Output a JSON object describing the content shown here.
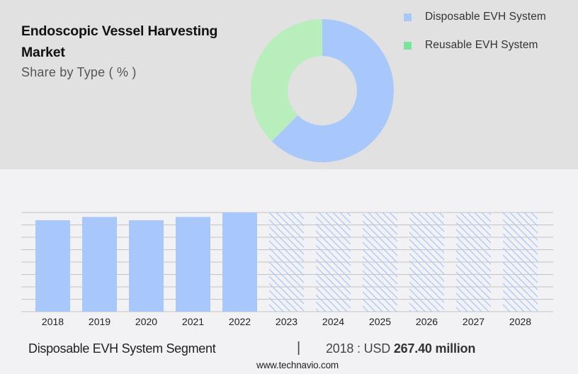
{
  "header": {
    "title": "Endoscopic Vessel Harvesting Market",
    "subtitle": "Share by Type ( % )"
  },
  "legend": [
    {
      "label": "Disposable EVH System",
      "color": "#a8c8fc"
    },
    {
      "label": "Reusable EVH System",
      "color": "#7ce49a"
    }
  ],
  "footer": {
    "segment": "Disposable EVH System Segment",
    "separator": "|",
    "value_prefix": "2018 : USD",
    "value_bold": "267.40 million",
    "url": "www.technavio.com"
  },
  "colors": {
    "top_band": "#e1e1e1",
    "background": "#f2f2f4",
    "disposable": "#a8c8fc",
    "reusable_donut": "#b8eebc",
    "reusable_legend": "#7ce49a",
    "gridline": "#c4c4c4"
  },
  "chart_data": [
    {
      "type": "pie",
      "variant": "donut",
      "title": "Endoscopic Vessel Harvesting Market",
      "subtitle": "Share by Type ( % )",
      "categories": [
        "Disposable EVH System",
        "Reusable EVH System"
      ],
      "values": [
        62.5,
        37.5
      ],
      "colors": [
        "#a8c8fc",
        "#b8eebc"
      ],
      "legend_position": "right",
      "start_angle": "12 o'clock, clockwise"
    },
    {
      "type": "bar",
      "title": "Disposable EVH System Segment",
      "categories": [
        "2018",
        "2019",
        "2020",
        "2021",
        "2022",
        "2023",
        "2024",
        "2025",
        "2026",
        "2027",
        "2028"
      ],
      "series": [
        {
          "name": "Disposable EVH System (historic)",
          "values": [
            267.4,
            277.0,
            267.4,
            277.0,
            290.0,
            null,
            null,
            null,
            null,
            null,
            null
          ],
          "style": "solid",
          "color": "#a8c8fc"
        },
        {
          "name": "Disposable EVH System (forecast)",
          "values": [
            null,
            null,
            null,
            null,
            null,
            290.0,
            290.0,
            290.0,
            290.0,
            290.0,
            290.0
          ],
          "style": "hatched",
          "color": "#a8c8fc"
        }
      ],
      "annotation": "2018 : USD 267.40 million",
      "xlabel": "",
      "ylabel": "",
      "y_axis_labels_visible": false,
      "grid": true,
      "gridline_count": 9,
      "note": "Forecast bars (2023-2028) shown as hatched placeholders filling the full plot height"
    }
  ]
}
